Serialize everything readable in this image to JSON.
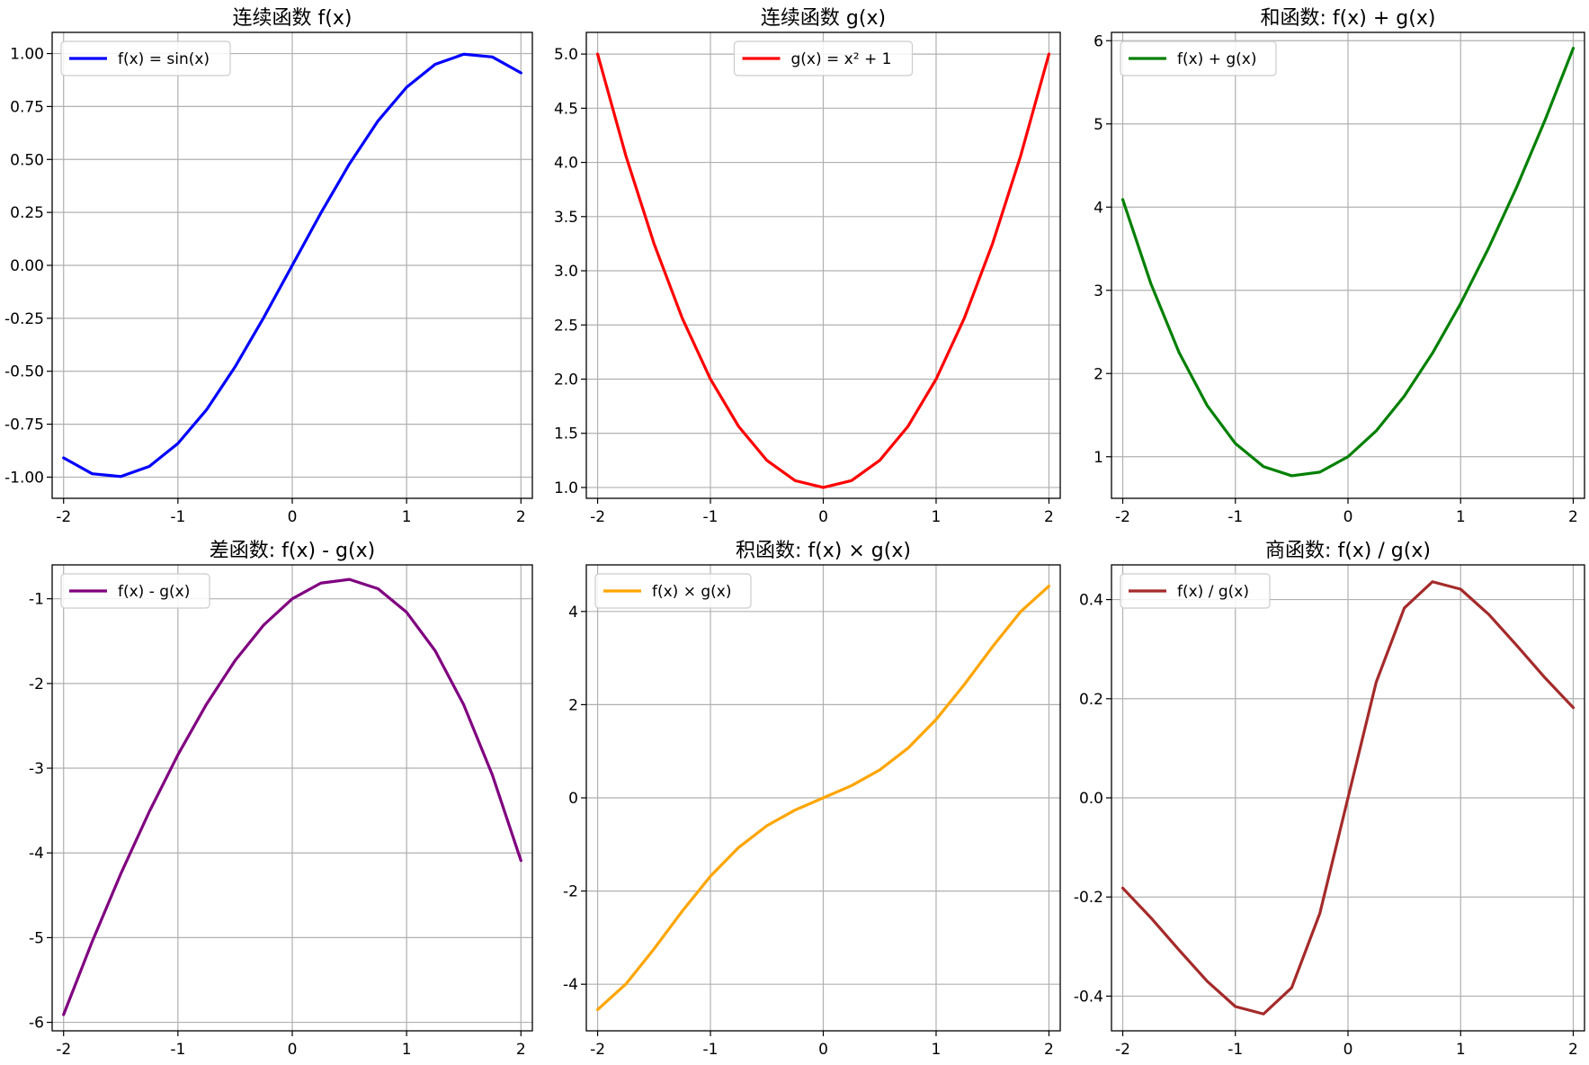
{
  "chart_data": [
    {
      "type": "line",
      "title": "连续函数 f(x)",
      "xlim": [
        -2.1,
        2.1
      ],
      "ylim": [
        -1.1,
        1.1
      ],
      "xticks": [
        -2,
        -1,
        0,
        1,
        2
      ],
      "xtick_labels": [
        "-2",
        "-1",
        "0",
        "1",
        "2"
      ],
      "yticks": [
        -1.0,
        -0.75,
        -0.5,
        -0.25,
        0.0,
        0.25,
        0.5,
        0.75,
        1.0
      ],
      "ytick_labels": [
        "-1.00",
        "-0.75",
        "-0.50",
        "-0.25",
        "0.00",
        "0.25",
        "0.50",
        "0.75",
        "1.00"
      ],
      "grid": true,
      "legend_position": "top-left",
      "series": [
        {
          "name": "f(x) = sin(x)",
          "color": "#0000ff",
          "x": [
            -2.0,
            -1.75,
            -1.5,
            -1.25,
            -1.0,
            -0.75,
            -0.5,
            -0.25,
            0.0,
            0.25,
            0.5,
            0.75,
            1.0,
            1.25,
            1.5,
            1.75,
            2.0
          ],
          "y": [
            -0.909,
            -0.984,
            -0.997,
            -0.949,
            -0.841,
            -0.682,
            -0.479,
            -0.247,
            0.0,
            0.247,
            0.479,
            0.682,
            0.841,
            0.949,
            0.997,
            0.984,
            0.909
          ]
        }
      ]
    },
    {
      "type": "line",
      "title": "连续函数 g(x)",
      "xlim": [
        -2.1,
        2.1
      ],
      "ylim": [
        0.9,
        5.2
      ],
      "xticks": [
        -2,
        -1,
        0,
        1,
        2
      ],
      "xtick_labels": [
        "-2",
        "-1",
        "0",
        "1",
        "2"
      ],
      "yticks": [
        1.0,
        1.5,
        2.0,
        2.5,
        3.0,
        3.5,
        4.0,
        4.5,
        5.0
      ],
      "ytick_labels": [
        "1.0",
        "1.5",
        "2.0",
        "2.5",
        "3.0",
        "3.5",
        "4.0",
        "4.5",
        "5.0"
      ],
      "grid": true,
      "legend_position": "top-center",
      "series": [
        {
          "name": "g(x) = x² + 1",
          "color": "#ff0000",
          "x": [
            -2.0,
            -1.75,
            -1.5,
            -1.25,
            -1.0,
            -0.75,
            -0.5,
            -0.25,
            0.0,
            0.25,
            0.5,
            0.75,
            1.0,
            1.25,
            1.5,
            1.75,
            2.0
          ],
          "y": [
            5.0,
            4.063,
            3.25,
            2.563,
            2.0,
            1.563,
            1.25,
            1.063,
            1.0,
            1.063,
            1.25,
            1.563,
            2.0,
            2.563,
            3.25,
            4.063,
            5.0
          ]
        }
      ]
    },
    {
      "type": "line",
      "title": "和函数: f(x) + g(x)",
      "xlim": [
        -2.1,
        2.1
      ],
      "ylim": [
        0.5,
        6.1
      ],
      "xticks": [
        -2,
        -1,
        0,
        1,
        2
      ],
      "xtick_labels": [
        "-2",
        "-1",
        "0",
        "1",
        "2"
      ],
      "yticks": [
        1,
        2,
        3,
        4,
        5,
        6
      ],
      "ytick_labels": [
        "1",
        "2",
        "3",
        "4",
        "5",
        "6"
      ],
      "grid": true,
      "legend_position": "top-left",
      "series": [
        {
          "name": "f(x) + g(x)",
          "color": "#008000",
          "x": [
            -2.0,
            -1.75,
            -1.5,
            -1.25,
            -1.0,
            -0.75,
            -0.5,
            -0.25,
            0.0,
            0.25,
            0.5,
            0.75,
            1.0,
            1.25,
            1.5,
            1.75,
            2.0
          ],
          "y": [
            4.091,
            3.079,
            2.253,
            1.614,
            1.159,
            0.881,
            0.771,
            0.815,
            1.0,
            1.31,
            1.729,
            2.244,
            2.841,
            3.512,
            4.247,
            5.047,
            5.909
          ]
        }
      ]
    },
    {
      "type": "line",
      "title": "差函数: f(x) - g(x)",
      "xlim": [
        -2.1,
        2.1
      ],
      "ylim": [
        -6.1,
        -0.6
      ],
      "xticks": [
        -2,
        -1,
        0,
        1,
        2
      ],
      "xtick_labels": [
        "-2",
        "-1",
        "0",
        "1",
        "2"
      ],
      "yticks": [
        -6,
        -5,
        -4,
        -3,
        -2,
        -1
      ],
      "ytick_labels": [
        "-6",
        "-5",
        "-4",
        "-3",
        "-2",
        "-1"
      ],
      "grid": true,
      "legend_position": "top-left",
      "series": [
        {
          "name": "f(x) - g(x)",
          "color": "#800080",
          "x": [
            -2.0,
            -1.75,
            -1.5,
            -1.25,
            -1.0,
            -0.75,
            -0.5,
            -0.25,
            0.0,
            0.25,
            0.5,
            0.75,
            1.0,
            1.25,
            1.5,
            1.75,
            2.0
          ],
          "y": [
            -5.909,
            -5.047,
            -4.247,
            -3.512,
            -2.841,
            -2.244,
            -1.729,
            -1.31,
            -1.0,
            -0.815,
            -0.771,
            -0.881,
            -1.159,
            -1.614,
            -2.253,
            -3.079,
            -4.091
          ]
        }
      ]
    },
    {
      "type": "line",
      "title": "积函数: f(x) × g(x)",
      "xlim": [
        -2.1,
        2.1
      ],
      "ylim": [
        -5.0,
        5.0
      ],
      "xticks": [
        -2,
        -1,
        0,
        1,
        2
      ],
      "xtick_labels": [
        "-2",
        "-1",
        "0",
        "1",
        "2"
      ],
      "yticks": [
        -4,
        -2,
        0,
        2,
        4
      ],
      "ytick_labels": [
        "-4",
        "-2",
        "0",
        "2",
        "4"
      ],
      "grid": true,
      "legend_position": "top-left",
      "series": [
        {
          "name": "f(x) × g(x)",
          "color": "#ffa500",
          "x": [
            -2.0,
            -1.75,
            -1.5,
            -1.25,
            -1.0,
            -0.75,
            -0.5,
            -0.25,
            0.0,
            0.25,
            0.5,
            0.75,
            1.0,
            1.25,
            1.5,
            1.75,
            2.0
          ],
          "y": [
            -4.546,
            -3.998,
            -3.242,
            -2.432,
            -1.683,
            -1.065,
            -0.599,
            -0.262,
            0.0,
            0.262,
            0.599,
            1.065,
            1.683,
            2.432,
            3.242,
            3.998,
            4.546
          ]
        }
      ]
    },
    {
      "type": "line",
      "title": "商函数: f(x) / g(x)",
      "xlim": [
        -2.1,
        2.1
      ],
      "ylim": [
        -0.47,
        0.47
      ],
      "xticks": [
        -2,
        -1,
        0,
        1,
        2
      ],
      "xtick_labels": [
        "-2",
        "-1",
        "0",
        "1",
        "2"
      ],
      "yticks": [
        -0.4,
        -0.2,
        0.0,
        0.2,
        0.4
      ],
      "ytick_labels": [
        "-0.4",
        "-0.2",
        "0.0",
        "0.2",
        "0.4"
      ],
      "grid": true,
      "legend_position": "top-left",
      "series": [
        {
          "name": "f(x) / g(x)",
          "color": "#a52a2a",
          "x": [
            -2.0,
            -1.75,
            -1.5,
            -1.25,
            -1.0,
            -0.75,
            -0.5,
            -0.25,
            0.0,
            0.25,
            0.5,
            0.75,
            1.0,
            1.25,
            1.5,
            1.75,
            2.0
          ],
          "y": [
            -0.182,
            -0.242,
            -0.307,
            -0.37,
            -0.421,
            -0.436,
            -0.383,
            -0.233,
            0.0,
            0.233,
            0.383,
            0.436,
            0.421,
            0.37,
            0.307,
            0.242,
            0.182
          ]
        }
      ]
    }
  ]
}
